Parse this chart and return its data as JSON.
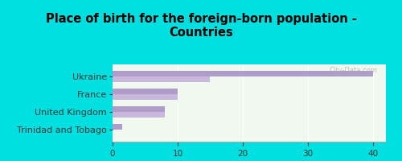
{
  "title": "Place of birth for the foreign-born population -\nCountries",
  "categories": [
    "Trinidad and Tobago",
    "United Kingdom",
    "France",
    "Ukraine"
  ],
  "values1": [
    1.5,
    8,
    10,
    40
  ],
  "values2": [
    0,
    8,
    10,
    15
  ],
  "bar_color1": "#b09cc8",
  "bar_color2": "#c8b8dc",
  "background_color": "#00e0e0",
  "chart_bg_start": "#f0f8f0",
  "chart_bg_end": "#e0f0e0",
  "xlim": [
    0,
    42
  ],
  "xticks": [
    0,
    10,
    20,
    30,
    40
  ],
  "bar_height": 0.32,
  "title_fontsize": 10.5,
  "label_fontsize": 8,
  "tick_fontsize": 7.5,
  "watermark": "City-Data.com"
}
